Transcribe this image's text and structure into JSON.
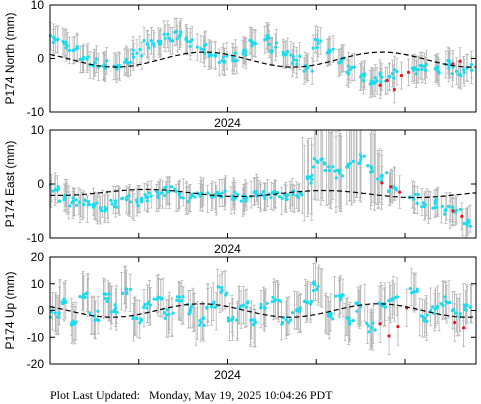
{
  "footer": {
    "label": "Plot Last Updated:",
    "timestamp": "Monday, May 19, 2025 10:04:26 PDT"
  },
  "colors": {
    "points": "#19dcf0",
    "recent_points": "#e8141e",
    "error_bars": "#b4b4b4",
    "model": "#000000"
  },
  "chart_data": [
    {
      "type": "scatter",
      "ylabel": "P174 North (mm)",
      "ylim": [
        -10,
        10
      ],
      "yticks": [
        -10,
        0,
        10
      ],
      "xlabel_tick": "2024",
      "xlim": [
        2023.0,
        2025.4
      ],
      "xtick_positions": [
        2023.0,
        2023.5,
        2024.0,
        2024.5,
        2025.0
      ],
      "xtick_labeled": 2024.0,
      "grid": false,
      "model_curve": {
        "offset": -0.2,
        "amplitude": 1.4,
        "phase": 0.62,
        "trend": 0.0
      },
      "series": [
        {
          "name": "",
          "x": [
            2023.03,
            2023.08,
            2023.13,
            2023.19,
            2023.25,
            2023.31,
            2023.37,
            2023.43,
            2023.49,
            2023.55,
            2023.61,
            2023.67,
            2023.73,
            2023.79,
            2023.85,
            2023.91,
            2023.97,
            2024.03,
            2024.09,
            2024.15,
            2024.21,
            2024.27,
            2024.33,
            2024.39,
            2024.45,
            2024.51,
            2024.57,
            2024.63,
            2024.69,
            2024.75,
            2024.81,
            2024.87,
            2024.93,
            2025.05,
            2025.11,
            2025.17,
            2025.23,
            2025.29,
            2025.35
          ],
          "y": [
            3.5,
            2.8,
            1.5,
            0.2,
            -0.8,
            -1.2,
            -1.5,
            -0.5,
            1.0,
            2.6,
            3.2,
            3.8,
            4.2,
            3.1,
            1.8,
            0.6,
            -0.4,
            0.2,
            1.5,
            2.9,
            3.5,
            2.1,
            0.8,
            -0.4,
            -1.6,
            2.8,
            1.2,
            -0.8,
            -2.1,
            -3.4,
            -4.2,
            -3.5,
            -2.8,
            -2.2,
            -1.5,
            -1.9,
            -1.1,
            -2.4,
            -1.8
          ],
          "err": [
            2.5,
            2.5,
            2.5,
            2.5,
            2.5,
            2.5,
            2.5,
            2.5,
            2.5,
            2.5,
            2.5,
            2.5,
            2.5,
            2.5,
            2.5,
            2.5,
            2.5,
            2.5,
            2.5,
            2.5,
            2.5,
            2.5,
            2.5,
            2.5,
            2.5,
            2.5,
            2.5,
            2.5,
            2.5,
            2.5,
            2.5,
            2.5,
            2.5,
            2.5,
            2.5,
            2.5,
            2.5,
            2.5,
            2.5
          ]
        },
        {
          "name": "",
          "recent": true,
          "x": [
            2024.86,
            2024.9,
            2024.94,
            2024.98,
            2025.02,
            2025.27,
            2025.31
          ],
          "y": [
            -5.0,
            -4.1,
            -5.8,
            -3.2,
            -2.6,
            -1.0,
            -0.5
          ],
          "err": [
            2.5,
            2.5,
            2.5,
            2.5,
            2.5,
            2.5,
            2.5
          ]
        }
      ]
    },
    {
      "type": "scatter",
      "ylabel": "P174 East (mm)",
      "ylim": [
        -10,
        10
      ],
      "yticks": [
        -10,
        0,
        10
      ],
      "xlabel_tick": "2024",
      "xlim": [
        2023.0,
        2025.4
      ],
      "xtick_positions": [
        2023.0,
        2023.5,
        2024.0,
        2024.5,
        2025.0
      ],
      "xtick_labeled": 2024.0,
      "grid": false,
      "model_curve": {
        "offset": -1.5,
        "amplitude": 0.6,
        "phase": 0.3,
        "trend": -0.2
      },
      "series": [
        {
          "name": "",
          "x": [
            2023.03,
            2023.08,
            2023.13,
            2023.19,
            2023.25,
            2023.31,
            2023.37,
            2023.43,
            2023.49,
            2023.55,
            2023.61,
            2023.67,
            2023.73,
            2023.79,
            2023.85,
            2023.91,
            2023.97,
            2024.03,
            2024.09,
            2024.15,
            2024.21,
            2024.27,
            2024.33,
            2024.39,
            2024.45,
            2024.51,
            2024.57,
            2024.63,
            2024.69,
            2024.75,
            2024.81,
            2024.87,
            2024.93,
            2025.05,
            2025.11,
            2025.17,
            2025.23,
            2025.29,
            2025.35
          ],
          "y": [
            -1.0,
            -2.5,
            -3.2,
            -3.8,
            -4.0,
            -4.3,
            -3.6,
            -2.9,
            -3.4,
            -2.5,
            -2.1,
            -1.4,
            -1.8,
            -2.6,
            -1.9,
            -2.4,
            -1.7,
            -2.2,
            -2.6,
            -1.5,
            -2.3,
            -2.0,
            -2.8,
            -2.1,
            1.0,
            4.0,
            3.2,
            2.0,
            3.8,
            4.5,
            3.0,
            1.2,
            -0.5,
            -2.8,
            -4.2,
            -3.6,
            -4.8,
            -4.9,
            -7.0
          ],
          "err": [
            2.5,
            2.5,
            2.5,
            2.5,
            2.5,
            2.5,
            2.5,
            2.5,
            2.5,
            2.5,
            2.5,
            2.5,
            2.5,
            2.5,
            2.5,
            2.5,
            2.5,
            2.5,
            2.5,
            2.5,
            2.5,
            2.5,
            2.5,
            2.5,
            7.0,
            7.0,
            7.0,
            7.0,
            7.0,
            7.0,
            7.0,
            5.0,
            3.0,
            2.5,
            2.5,
            2.5,
            2.5,
            2.5,
            2.5
          ]
        },
        {
          "name": "",
          "recent": true,
          "x": [
            2024.87,
            2024.92,
            2024.97,
            2025.27,
            2025.32
          ],
          "y": [
            0.2,
            -0.5,
            -1.5,
            -5.0,
            -6.0
          ],
          "err": [
            3.0,
            3.0,
            3.0,
            2.5,
            2.5
          ]
        }
      ]
    },
    {
      "type": "scatter",
      "ylabel": "P174 Up (mm)",
      "ylim": [
        -20,
        20
      ],
      "yticks": [
        -20,
        -10,
        0,
        10,
        20
      ],
      "xlabel_tick": "2024",
      "xlim": [
        2023.0,
        2025.4
      ],
      "xtick_positions": [
        2023.0,
        2023.5,
        2024.0,
        2024.5,
        2025.0
      ],
      "xtick_labeled": 2024.0,
      "grid": false,
      "model_curve": {
        "offset": 0.0,
        "amplitude": 2.5,
        "phase": 0.6,
        "trend": 0.0
      },
      "series": [
        {
          "name": "",
          "x": [
            2023.03,
            2023.08,
            2023.13,
            2023.19,
            2023.25,
            2023.31,
            2023.37,
            2023.43,
            2023.49,
            2023.55,
            2023.61,
            2023.67,
            2023.73,
            2023.79,
            2023.85,
            2023.91,
            2023.97,
            2024.03,
            2024.09,
            2024.15,
            2024.21,
            2024.27,
            2024.33,
            2024.39,
            2024.45,
            2024.51,
            2024.57,
            2024.63,
            2024.69,
            2024.75,
            2024.81,
            2024.87,
            2024.93,
            2025.05,
            2025.11,
            2025.17,
            2025.23,
            2025.29,
            2025.35
          ],
          "y": [
            -1.0,
            3.0,
            -4.0,
            6.0,
            -2.0,
            4.5,
            1.0,
            8.0,
            -3.0,
            2.5,
            5.0,
            -1.5,
            3.5,
            0.5,
            -4.5,
            1.5,
            7.5,
            -2.5,
            2.0,
            -5.0,
            1.0,
            4.0,
            -3.5,
            0.0,
            3.0,
            9.0,
            -2.0,
            5.5,
            -4.0,
            1.5,
            -6.5,
            2.5,
            4.0,
            7.0,
            -3.0,
            0.5,
            3.5,
            -1.0,
            2.0
          ],
          "err": [
            7.0,
            7.0,
            7.0,
            7.0,
            7.0,
            7.0,
            7.0,
            7.0,
            7.0,
            7.0,
            7.0,
            7.0,
            7.0,
            7.0,
            7.0,
            7.0,
            7.0,
            7.0,
            7.0,
            7.0,
            7.0,
            7.0,
            7.0,
            7.0,
            7.0,
            7.0,
            7.0,
            7.0,
            7.0,
            7.0,
            7.0,
            7.0,
            7.0,
            7.0,
            7.0,
            7.0,
            7.0,
            7.0,
            7.0
          ]
        },
        {
          "name": "",
          "recent": true,
          "x": [
            2024.86,
            2024.91,
            2024.96,
            2025.01,
            2025.28,
            2025.33
          ],
          "y": [
            -5.0,
            -9.5,
            -6.0,
            1.0,
            -4.5,
            -6.5
          ],
          "err": [
            7.0,
            7.0,
            7.0,
            7.0,
            7.0,
            7.0
          ]
        }
      ]
    }
  ]
}
